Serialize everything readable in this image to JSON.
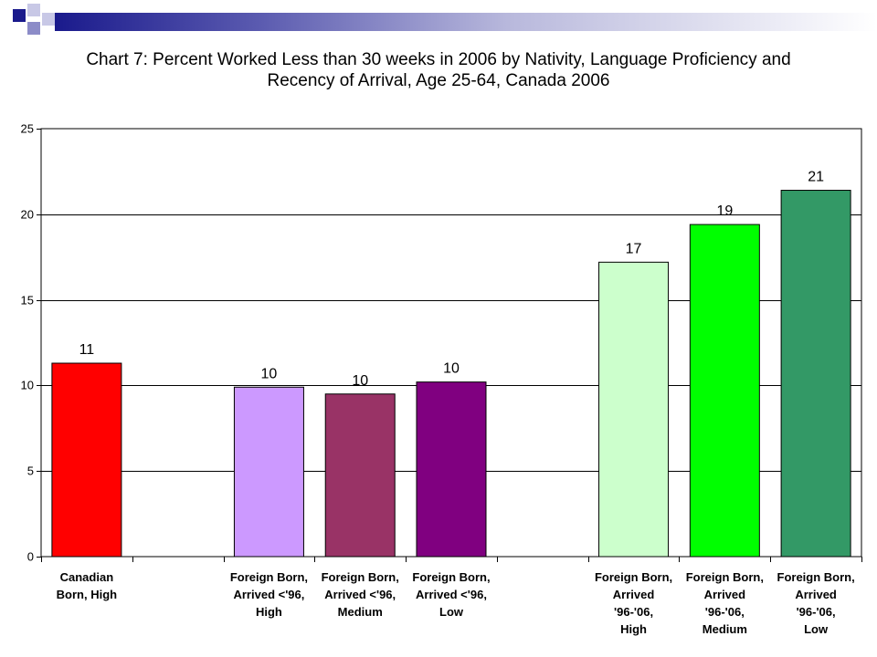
{
  "slide": {
    "decoration_colors": [
      "#1a1a8c",
      "#8c8cc8",
      "#c8c8e6"
    ]
  },
  "chart_data": {
    "type": "bar",
    "title_lines": [
      "Chart 7: Percent Worked Less than 30 weeks in 2006 by Nativity, Language Proficiency and",
      "Recency of Arrival,  Age 25-64, Canada 2006"
    ],
    "categories": [
      [
        "Canadian",
        "Born, High"
      ],
      [],
      [
        "Foreign Born,",
        "Arrived <'96,",
        "High"
      ],
      [
        "Foreign Born,",
        "Arrived <'96,",
        "Medium"
      ],
      [
        "Foreign Born,",
        "Arrived <'96,",
        "Low"
      ],
      [],
      [
        "Foreign Born,",
        "Arrived",
        "'96-'06,",
        "High"
      ],
      [
        "Foreign Born,",
        "Arrived",
        "'96-'06,",
        "Medium"
      ],
      [
        "Foreign Born,",
        "Arrived",
        "'96-'06,",
        "Low"
      ]
    ],
    "values": [
      11.3,
      null,
      9.9,
      9.5,
      10.2,
      null,
      17.2,
      19.4,
      21.4
    ],
    "data_labels": [
      "11",
      "",
      "10",
      "10",
      "10",
      "",
      "17",
      "19",
      "21"
    ],
    "colors": [
      "#ff0000",
      "",
      "#cc99ff",
      "#993366",
      "#800080",
      "",
      "#ccffcc",
      "#00ff00",
      "#339966"
    ],
    "ylim": [
      0,
      25
    ],
    "yticks": [
      0,
      5,
      10,
      15,
      20,
      25
    ],
    "grid": true,
    "legend": "none"
  }
}
